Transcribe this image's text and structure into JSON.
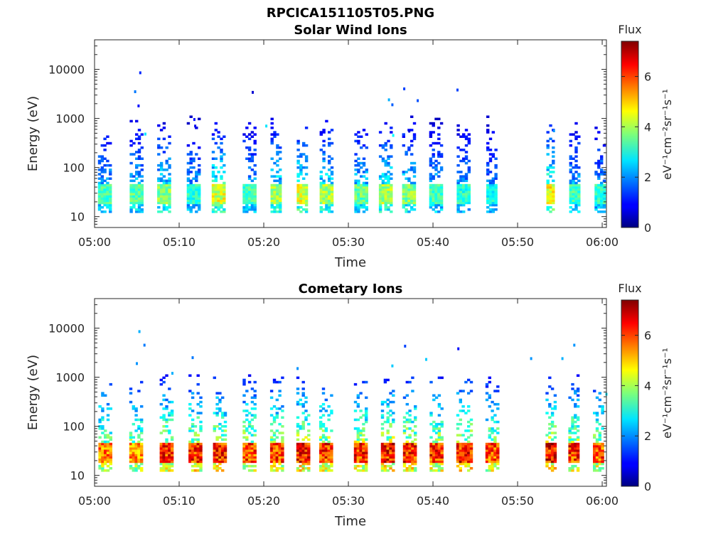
{
  "figure": {
    "filename": "RPCICA151105T05.PNG"
  },
  "chart_data": [
    {
      "type": "heatmap",
      "title": "Solar Wind Ions",
      "xlabel": "Time",
      "ylabel": "Energy (eV)",
      "x_ticks": [
        "05:00",
        "05:10",
        "05:20",
        "05:30",
        "05:40",
        "05:50",
        "06:00"
      ],
      "y_scale": "log",
      "y_ticks": [
        "10",
        "100",
        "1000",
        "10000"
      ],
      "ylim": [
        6,
        40000
      ],
      "xlim_minutes": [
        0,
        60.5
      ],
      "colorbar": {
        "label_top": "Flux",
        "label_side": "eV⁻¹cm⁻²sr⁻¹s⁻¹",
        "ticks": [
          "0",
          "2",
          "4",
          "6"
        ],
        "range": [
          0,
          7.4
        ],
        "colormap": "jet"
      },
      "bursts": [
        {
          "t": 1.1,
          "dur": 1.4,
          "peak": 3.6
        },
        {
          "t": 4.8,
          "dur": 1.3,
          "peak": 3.8
        },
        {
          "t": 8.1,
          "dur": 1.4,
          "peak": 4.2
        },
        {
          "t": 11.6,
          "dur": 1.4,
          "peak": 3.4
        },
        {
          "t": 14.6,
          "dur": 1.5,
          "peak": 4.8
        },
        {
          "t": 18.2,
          "dur": 1.4,
          "peak": 3.6
        },
        {
          "t": 21.4,
          "dur": 1.2,
          "peak": 4.3
        },
        {
          "t": 24.5,
          "dur": 1.2,
          "peak": 4.8
        },
        {
          "t": 27.3,
          "dur": 1.4,
          "peak": 4.4
        },
        {
          "t": 31.4,
          "dur": 1.4,
          "peak": 3.9
        },
        {
          "t": 34.3,
          "dur": 1.4,
          "peak": 4.5
        },
        {
          "t": 37.0,
          "dur": 1.3,
          "peak": 4.2
        },
        {
          "t": 40.3,
          "dur": 1.5,
          "peak": 3.6
        },
        {
          "t": 43.6,
          "dur": 1.6,
          "peak": 3.4
        },
        {
          "t": 46.9,
          "dur": 1.2,
          "peak": 3.2
        },
        {
          "t": 53.8,
          "dur": 0.8,
          "peak": 5.0
        },
        {
          "t": 56.6,
          "dur": 1.0,
          "peak": 3.6
        },
        {
          "t": 59.6,
          "dur": 1.0,
          "peak": 3.4
        }
      ],
      "scatter_points": [
        {
          "t": 5.4,
          "e": 8500,
          "v": 1.2
        },
        {
          "t": 4.8,
          "e": 3500,
          "v": 1.8
        },
        {
          "t": 5.2,
          "e": 1800,
          "v": 1.0
        },
        {
          "t": 11.8,
          "e": 950,
          "v": 1.0
        },
        {
          "t": 11.9,
          "e": 700,
          "v": 0.8
        },
        {
          "t": 18.7,
          "e": 3400,
          "v": 0.6
        },
        {
          "t": 20.3,
          "e": 700,
          "v": 2.6
        },
        {
          "t": 34.8,
          "e": 2400,
          "v": 2.2
        },
        {
          "t": 35.2,
          "e": 1900,
          "v": 1.6
        },
        {
          "t": 36.6,
          "e": 4000,
          "v": 1.4
        },
        {
          "t": 38.2,
          "e": 2300,
          "v": 1.5
        },
        {
          "t": 42.9,
          "e": 3800,
          "v": 1.4
        },
        {
          "t": 37.2,
          "e": 550,
          "v": 0.6
        },
        {
          "t": 54.3,
          "e": 560,
          "v": 2.0
        },
        {
          "t": 35.3,
          "e": 450,
          "v": 2.8
        },
        {
          "t": 6.0,
          "e": 480,
          "v": 2.6
        }
      ]
    },
    {
      "type": "heatmap",
      "title": "Cometary Ions",
      "xlabel": "Time",
      "ylabel": "Energy (eV)",
      "x_ticks": [
        "05:00",
        "05:10",
        "05:20",
        "05:30",
        "05:40",
        "05:50",
        "06:00"
      ],
      "y_scale": "log",
      "y_ticks": [
        "10",
        "100",
        "1000",
        "10000"
      ],
      "ylim": [
        6,
        40000
      ],
      "xlim_minutes": [
        0,
        60.5
      ],
      "colorbar": {
        "label_top": "Flux",
        "label_side": "eV⁻¹cm⁻²sr⁻¹s⁻¹",
        "ticks": [
          "0",
          "2",
          "4",
          "6"
        ],
        "range": [
          0,
          7.4
        ],
        "colormap": "jet"
      },
      "bursts": [
        {
          "t": 1.2,
          "dur": 1.5,
          "peak": 6.2
        },
        {
          "t": 4.9,
          "dur": 1.6,
          "peak": 6.0
        },
        {
          "t": 8.5,
          "dur": 1.6,
          "peak": 6.8
        },
        {
          "t": 11.8,
          "dur": 1.4,
          "peak": 6.8
        },
        {
          "t": 14.8,
          "dur": 1.6,
          "peak": 6.9
        },
        {
          "t": 18.2,
          "dur": 1.4,
          "peak": 6.6
        },
        {
          "t": 21.4,
          "dur": 1.3,
          "peak": 6.7
        },
        {
          "t": 24.5,
          "dur": 1.3,
          "peak": 7.0
        },
        {
          "t": 27.3,
          "dur": 1.5,
          "peak": 6.8
        },
        {
          "t": 31.4,
          "dur": 1.5,
          "peak": 6.9
        },
        {
          "t": 34.6,
          "dur": 1.5,
          "peak": 7.0
        },
        {
          "t": 37.2,
          "dur": 1.5,
          "peak": 6.9
        },
        {
          "t": 40.4,
          "dur": 1.6,
          "peak": 6.8
        },
        {
          "t": 43.6,
          "dur": 1.7,
          "peak": 7.0
        },
        {
          "t": 46.9,
          "dur": 1.4,
          "peak": 6.5
        },
        {
          "t": 53.8,
          "dur": 1.0,
          "peak": 7.1
        },
        {
          "t": 56.6,
          "dur": 1.2,
          "peak": 6.8
        },
        {
          "t": 59.5,
          "dur": 1.2,
          "peak": 6.5
        }
      ],
      "scatter_points": [
        {
          "t": 5.3,
          "e": 8500,
          "v": 2.2
        },
        {
          "t": 5.9,
          "e": 4500,
          "v": 1.8
        },
        {
          "t": 5.0,
          "e": 1900,
          "v": 2.0
        },
        {
          "t": 9.2,
          "e": 1200,
          "v": 2.2
        },
        {
          "t": 11.6,
          "e": 2500,
          "v": 1.8
        },
        {
          "t": 24.0,
          "e": 1500,
          "v": 2.0
        },
        {
          "t": 35.2,
          "e": 1700,
          "v": 2.4
        },
        {
          "t": 36.7,
          "e": 4300,
          "v": 1.4
        },
        {
          "t": 39.2,
          "e": 2300,
          "v": 2.4
        },
        {
          "t": 43.0,
          "e": 3800,
          "v": 1.0
        },
        {
          "t": 51.6,
          "e": 2400,
          "v": 2.0
        },
        {
          "t": 55.3,
          "e": 2400,
          "v": 2.2
        },
        {
          "t": 56.7,
          "e": 4500,
          "v": 2.0
        },
        {
          "t": 60.5,
          "e": 450,
          "v": 2.6
        }
      ]
    }
  ]
}
